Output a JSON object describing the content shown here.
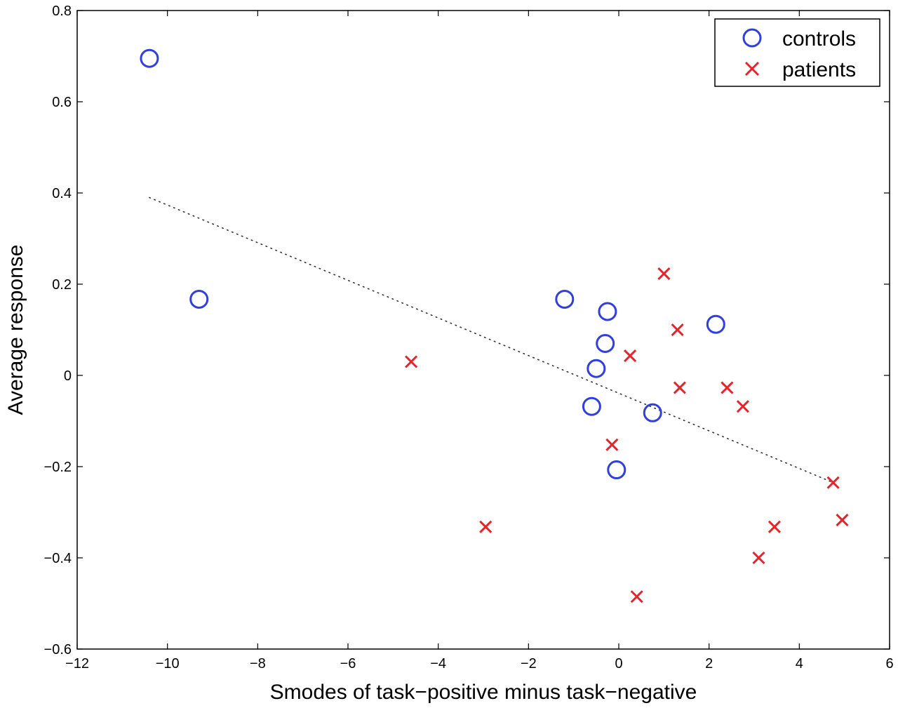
{
  "chart_data": {
    "type": "scatter",
    "title": "",
    "xlabel": "Smodes of task−positive minus task−negative",
    "ylabel": "Average response",
    "xlim": [
      -12,
      6
    ],
    "ylim": [
      -0.6,
      0.8
    ],
    "xticks": [
      -12,
      -10,
      -8,
      -6,
      -4,
      -2,
      0,
      2,
      4,
      6
    ],
    "yticks": [
      -0.6,
      -0.4,
      -0.2,
      0,
      0.2,
      0.4,
      0.6,
      0.8
    ],
    "xtick_labels": [
      "−12",
      "−10",
      "−8",
      "−6",
      "−4",
      "−2",
      "0",
      "2",
      "4",
      "6"
    ],
    "ytick_labels": [
      "−0.6",
      "−0.4",
      "−0.2",
      "0",
      "0.2",
      "0.4",
      "0.6",
      "0.8"
    ],
    "grid": false,
    "legend_position": "top-right",
    "series": [
      {
        "name": "controls",
        "marker": "circle",
        "color": "#2f3fe0",
        "points": [
          {
            "x": -10.4,
            "y": 0.695
          },
          {
            "x": -9.3,
            "y": 0.167
          },
          {
            "x": -1.2,
            "y": 0.167
          },
          {
            "x": -0.25,
            "y": 0.14
          },
          {
            "x": -0.3,
            "y": 0.07
          },
          {
            "x": -0.5,
            "y": 0.015
          },
          {
            "x": -0.6,
            "y": -0.068
          },
          {
            "x": -0.05,
            "y": -0.207
          },
          {
            "x": 0.75,
            "y": -0.082
          },
          {
            "x": 2.15,
            "y": 0.112
          }
        ]
      },
      {
        "name": "patients",
        "marker": "x",
        "color": "#e8242a",
        "points": [
          {
            "x": -4.6,
            "y": 0.03
          },
          {
            "x": -2.95,
            "y": -0.332
          },
          {
            "x": -0.15,
            "y": -0.152
          },
          {
            "x": 0.25,
            "y": 0.043
          },
          {
            "x": 0.4,
            "y": -0.485
          },
          {
            "x": 1.0,
            "y": 0.223
          },
          {
            "x": 1.3,
            "y": 0.1
          },
          {
            "x": 1.35,
            "y": -0.027
          },
          {
            "x": 2.4,
            "y": -0.027
          },
          {
            "x": 2.75,
            "y": -0.068
          },
          {
            "x": 3.1,
            "y": -0.4
          },
          {
            "x": 3.45,
            "y": -0.332
          },
          {
            "x": 4.75,
            "y": -0.235
          },
          {
            "x": 4.95,
            "y": -0.317
          }
        ]
      }
    ],
    "trend_line": {
      "style": "dotted",
      "color": "#333333",
      "x": [
        -10.4,
        4.75
      ],
      "y": [
        0.39,
        -0.235
      ]
    }
  }
}
